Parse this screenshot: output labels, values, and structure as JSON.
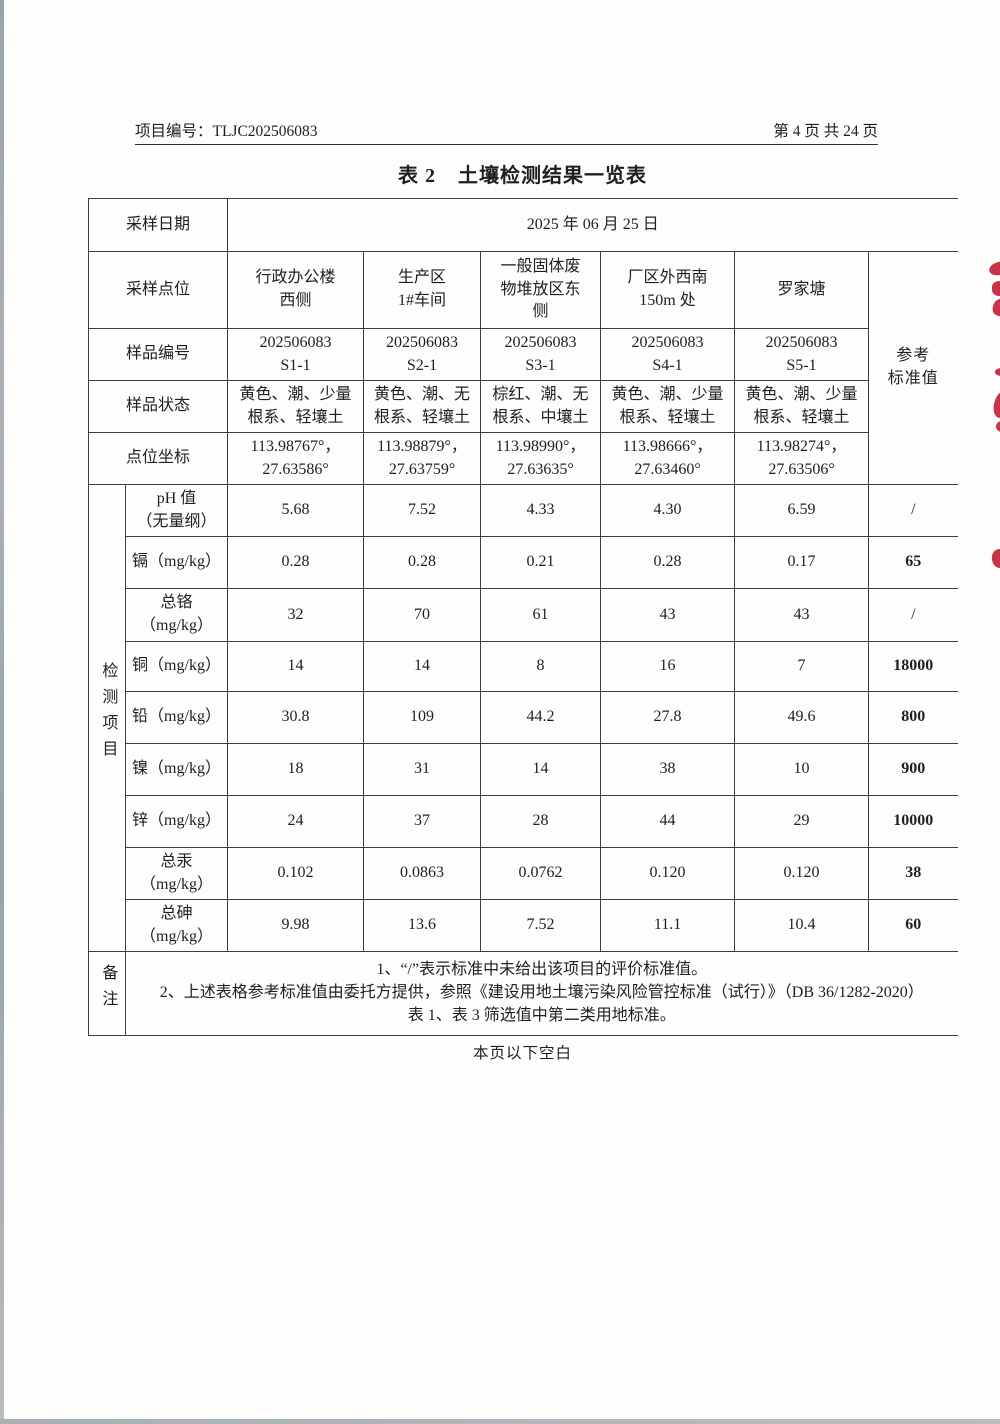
{
  "header": {
    "project_no": "项目编号：TLJC202506083",
    "page_info": "第 4 页 共 24 页"
  },
  "title": {
    "prefix": "表 2",
    "main": "土壤检测结果一览表"
  },
  "table": {
    "labels": {
      "sampling_date": "采样日期",
      "sampling_point": "采样点位",
      "sample_id": "样品编号",
      "sample_state": "样品状态",
      "coordinates": "点位坐标",
      "detection_items": "检测项目",
      "remarks": "备注",
      "reference_lines": [
        "参考",
        "标准值"
      ]
    },
    "sampling_date_value": "2025 年 06 月 25 日",
    "points": [
      {
        "location_lines": [
          "行政办公楼",
          "西侧"
        ],
        "id_lines": [
          "202506083",
          "S1-1"
        ],
        "state_lines": [
          "黄色、潮、少量",
          "根系、轻壤土"
        ],
        "coord_lines": [
          "113.98767°，",
          "27.63586°"
        ]
      },
      {
        "location_lines": [
          "生产区",
          "1#车间"
        ],
        "id_lines": [
          "202506083",
          "S2-1"
        ],
        "state_lines": [
          "黄色、潮、无",
          "根系、轻壤土"
        ],
        "coord_lines": [
          "113.98879°，",
          "27.63759°"
        ]
      },
      {
        "location_lines": [
          "一般固体废",
          "物堆放区东",
          "侧"
        ],
        "id_lines": [
          "202506083",
          "S3-1"
        ],
        "state_lines": [
          "棕红、潮、无",
          "根系、中壤土"
        ],
        "coord_lines": [
          "113.98990°，",
          "27.63635°"
        ]
      },
      {
        "location_lines": [
          "厂区外西南",
          "150m 处"
        ],
        "id_lines": [
          "202506083",
          "S4-1"
        ],
        "state_lines": [
          "黄色、潮、少量",
          "根系、轻壤土"
        ],
        "coord_lines": [
          "113.98666°，",
          "27.63460°"
        ]
      },
      {
        "location_lines": [
          "罗家塘"
        ],
        "id_lines": [
          "202506083",
          "S5-1"
        ],
        "state_lines": [
          "黄色、潮、少量",
          "根系、轻壤土"
        ],
        "coord_lines": [
          "113.98274°，",
          "27.63506°"
        ]
      }
    ],
    "parameters": [
      {
        "label_lines": [
          "pH 值",
          "（无量纲）"
        ],
        "values": [
          "5.68",
          "7.52",
          "4.33",
          "4.30",
          "6.59"
        ],
        "reference": "/"
      },
      {
        "label_lines": [
          "镉（mg/kg）"
        ],
        "values": [
          "0.28",
          "0.28",
          "0.21",
          "0.28",
          "0.17"
        ],
        "reference": "65"
      },
      {
        "label_lines": [
          "总铬",
          "（mg/kg）"
        ],
        "values": [
          "32",
          "70",
          "61",
          "43",
          "43"
        ],
        "reference": "/"
      },
      {
        "label_lines": [
          "铜（mg/kg）"
        ],
        "values": [
          "14",
          "14",
          "8",
          "16",
          "7"
        ],
        "reference": "18000"
      },
      {
        "label_lines": [
          "铅（mg/kg）"
        ],
        "values": [
          "30.8",
          "109",
          "44.2",
          "27.8",
          "49.6"
        ],
        "reference": "800"
      },
      {
        "label_lines": [
          "镍（mg/kg）"
        ],
        "values": [
          "18",
          "31",
          "14",
          "38",
          "10"
        ],
        "reference": "900"
      },
      {
        "label_lines": [
          "锌（mg/kg）"
        ],
        "values": [
          "24",
          "37",
          "28",
          "44",
          "29"
        ],
        "reference": "10000"
      },
      {
        "label_lines": [
          "总汞",
          "（mg/kg）"
        ],
        "values": [
          "0.102",
          "0.0863",
          "0.0762",
          "0.120",
          "0.120"
        ],
        "reference": "38"
      },
      {
        "label_lines": [
          "总砷",
          "（mg/kg）"
        ],
        "values": [
          "9.98",
          "13.6",
          "7.52",
          "11.1",
          "10.4"
        ],
        "reference": "60"
      }
    ],
    "remarks_lines": [
      "1、“/”表示标准中未给出该项目的评价标准值。",
      "2、上述表格参考标准值由委托方提供，参照《建设用地土壤污染风险管控标准（试行）》（DB 36/1282-2020）",
      "表 1、表 3 筛选值中第二类用地标准。"
    ]
  },
  "footer": {
    "text": "本页以下空白"
  },
  "colors": {
    "stamp": "#c32337",
    "border": "#3f3f3f",
    "text": "#1f1f1f"
  }
}
